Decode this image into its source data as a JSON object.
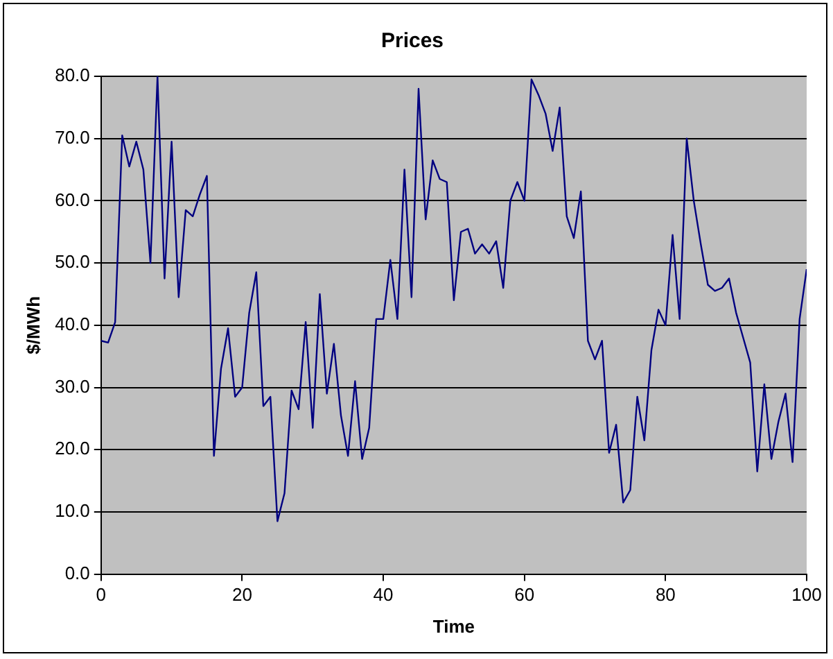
{
  "chart_data": {
    "type": "line",
    "title": "Prices",
    "xlabel": "Time",
    "ylabel": "$/MWh",
    "x": [
      0,
      1,
      2,
      3,
      4,
      5,
      6,
      7,
      8,
      9,
      10,
      11,
      12,
      13,
      14,
      15,
      16,
      17,
      18,
      19,
      20,
      21,
      22,
      23,
      24,
      25,
      26,
      27,
      28,
      29,
      30,
      31,
      32,
      33,
      34,
      35,
      36,
      37,
      38,
      39,
      40,
      41,
      42,
      43,
      44,
      45,
      46,
      47,
      48,
      49,
      50,
      51,
      52,
      53,
      54,
      55,
      56,
      57,
      58,
      59,
      60,
      61,
      62,
      63,
      64,
      65,
      66,
      67,
      68,
      69,
      70,
      71,
      72,
      73,
      74,
      75,
      76,
      77,
      78,
      79,
      80,
      81,
      82,
      83,
      84,
      85,
      86,
      87,
      88,
      89,
      90,
      91,
      92,
      93,
      94,
      95,
      96,
      97,
      98,
      99,
      100
    ],
    "series": [
      {
        "color": "#000080",
        "values": [
          37.5,
          37.2,
          40.5,
          70.5,
          65.5,
          69.5,
          65,
          50,
          80,
          47.5,
          69.5,
          44.5,
          58.5,
          57.5,
          61,
          64,
          19,
          33,
          39.5,
          28.5,
          30,
          42,
          48.5,
          27,
          28.5,
          8.5,
          13,
          29.5,
          26.5,
          40.5,
          23.5,
          45,
          29,
          37,
          25.5,
          19,
          31,
          18.5,
          23.5,
          41,
          41,
          50.5,
          41,
          65,
          44.5,
          78,
          57,
          66.5,
          63.5,
          63,
          44,
          55,
          55.5,
          51.5,
          53,
          51.5,
          53.5,
          46,
          60,
          63,
          60,
          79.5,
          77,
          74,
          68,
          75,
          57.5,
          54,
          61.5,
          37.5,
          34.5,
          37.5,
          19.5,
          24,
          11.5,
          13.5,
          28.5,
          21.5,
          36,
          42.5,
          40,
          54.5,
          41,
          70,
          60,
          53,
          46.5,
          45.5,
          46,
          47.5,
          42,
          38,
          34,
          16.5,
          30.5,
          18.5,
          24.5,
          29,
          18,
          41,
          49
        ]
      }
    ],
    "xlim": [
      0,
      100
    ],
    "xticks": [
      0,
      20,
      40,
      60,
      80,
      100
    ],
    "ylim": [
      0,
      80
    ],
    "yticks": [
      {
        "value": 0,
        "label": "0.0"
      },
      {
        "value": 10,
        "label": "10.0"
      },
      {
        "value": 20,
        "label": "20.0"
      },
      {
        "value": 30,
        "label": "30.0"
      },
      {
        "value": 40,
        "label": "40.0"
      },
      {
        "value": 50,
        "label": "50.0"
      },
      {
        "value": 60,
        "label": "60.0"
      },
      {
        "value": 70,
        "label": "70.0"
      },
      {
        "value": 80,
        "label": "80.0"
      }
    ],
    "grid": "y",
    "legend": false,
    "marker": "none",
    "line_style": "solid"
  }
}
